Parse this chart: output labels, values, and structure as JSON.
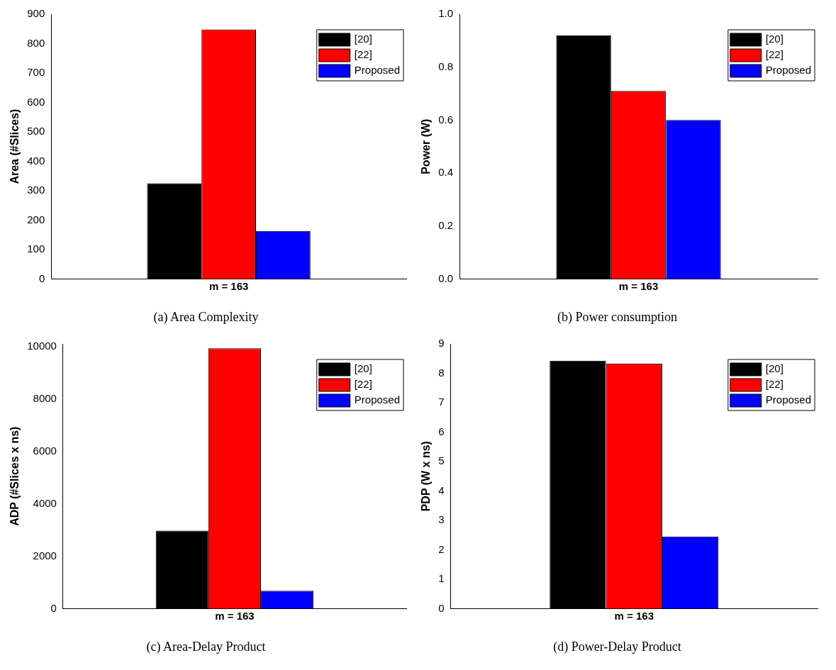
{
  "chart_data": [
    {
      "type": "bar",
      "title": "(a) Area Complexity",
      "ylabel": "Area (#Slices)",
      "categories": [
        "m = 163"
      ],
      "series": [
        {
          "name": "[20]",
          "color": "#000000",
          "values": [
            325
          ]
        },
        {
          "name": "[22]",
          "color": "#ff0000",
          "values": [
            848
          ]
        },
        {
          "name": "Proposed",
          "color": "#0000ff",
          "values": [
            163
          ]
        }
      ],
      "ylim": [
        0,
        900
      ],
      "yticks": [
        0,
        100,
        200,
        300,
        400,
        500,
        600,
        700,
        800,
        900
      ],
      "legend": "top right"
    },
    {
      "type": "bar",
      "title": "(b) Power consumption",
      "ylabel": "Power (W)",
      "categories": [
        "m = 163"
      ],
      "series": [
        {
          "name": "[20]",
          "color": "#000000",
          "values": [
            0.92
          ]
        },
        {
          "name": "[22]",
          "color": "#ff0000",
          "values": [
            0.71
          ]
        },
        {
          "name": "Proposed",
          "color": "#0000ff",
          "values": [
            0.6
          ]
        }
      ],
      "ylim": [
        0,
        1.0
      ],
      "yticks": [
        {
          "value": 0,
          "label": "0.0"
        },
        0.2,
        0.4,
        0.6,
        0.8,
        {
          "value": 1,
          "label": "1.0"
        }
      ],
      "legend": "top right"
    },
    {
      "type": "bar",
      "title": "(c) Area-Delay Product",
      "ylabel": "ADP (#Slices x ns)",
      "categories": [
        "m = 163"
      ],
      "series": [
        {
          "name": "[20]",
          "color": "#000000",
          "values": [
            2970
          ]
        },
        {
          "name": "[22]",
          "color": "#ff0000",
          "values": [
            9930
          ]
        },
        {
          "name": "Proposed",
          "color": "#0000ff",
          "values": [
            680
          ]
        }
      ],
      "ylim": [
        0,
        10100
      ],
      "yticks": [
        0,
        2000,
        4000,
        6000,
        8000,
        10000
      ],
      "legend": "top right"
    },
    {
      "type": "bar",
      "title": "(d) Power-Delay Product",
      "ylabel": "PDP (W x ns)",
      "categories": [
        "m = 163"
      ],
      "series": [
        {
          "name": "[20]",
          "color": "#000000",
          "values": [
            8.43
          ]
        },
        {
          "name": "[22]",
          "color": "#ff0000",
          "values": [
            8.33
          ]
        },
        {
          "name": "Proposed",
          "color": "#0000ff",
          "values": [
            2.45
          ]
        }
      ],
      "ylim": [
        0,
        9
      ],
      "yticks": [
        0,
        1,
        2,
        3,
        4,
        5,
        6,
        7,
        8,
        9
      ],
      "legend": "top right"
    }
  ]
}
